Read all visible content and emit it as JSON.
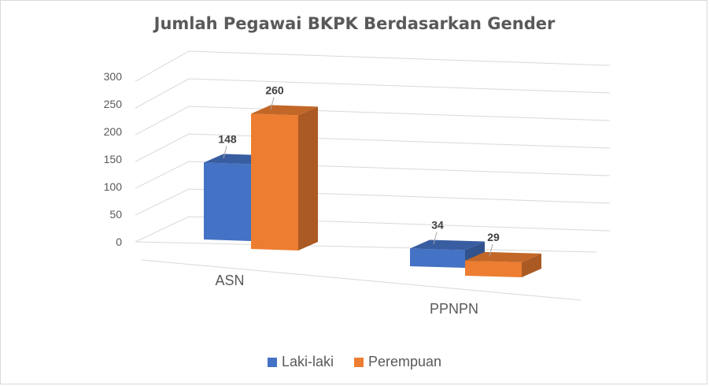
{
  "chart_data": {
    "type": "bar",
    "title": "Jumlah Pegawai BKPK Berdasarkan Gender",
    "categories": [
      "ASN",
      "PPNPN"
    ],
    "series": [
      {
        "name": "Laki-laki",
        "values": [
          148,
          34
        ],
        "color": "#4472C4"
      },
      {
        "name": "Perempuan",
        "values": [
          260,
          29
        ],
        "color": "#ED7D31"
      }
    ],
    "yticks": [
      "0",
      "50",
      "100",
      "150",
      "200",
      "250",
      "300"
    ],
    "ylim": [
      0,
      300
    ],
    "grid": true,
    "legend_position": "bottom",
    "three_d": true
  }
}
